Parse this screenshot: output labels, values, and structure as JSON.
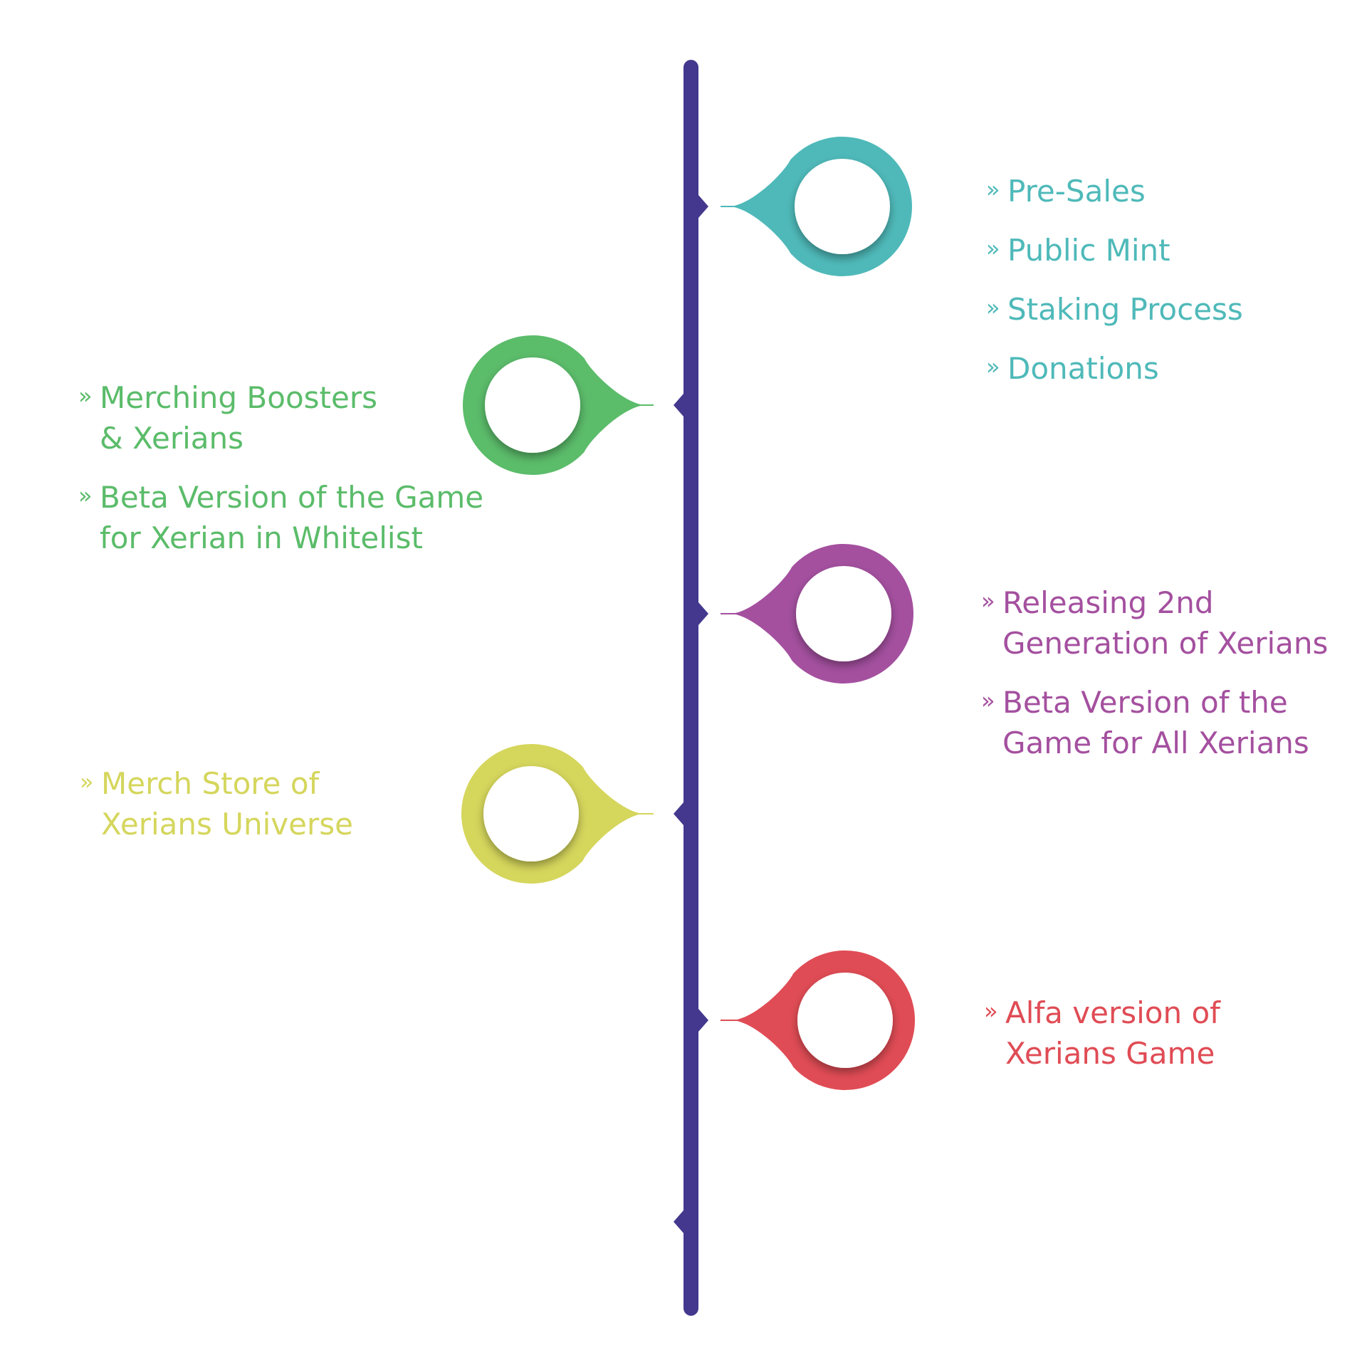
{
  "spine": {
    "color": "#43388d"
  },
  "milestones": [
    {
      "side": "right",
      "color": "#4fb9b9",
      "items": [
        {
          "lines": [
            "Pre-Sales"
          ]
        },
        {
          "lines": [
            "Public Mint"
          ]
        },
        {
          "lines": [
            "Staking Process"
          ]
        },
        {
          "lines": [
            "Donations"
          ]
        }
      ]
    },
    {
      "side": "left",
      "color": "#5bbc6a",
      "items": [
        {
          "lines": [
            "Merching Boosters",
            "& Xerians"
          ]
        },
        {
          "lines": [
            "Beta Version of the Game",
            "for Xerian in Whitelist"
          ]
        }
      ]
    },
    {
      "side": "right",
      "color": "#a4509f",
      "items": [
        {
          "lines": [
            "Releasing 2nd",
            "Generation of Xerians"
          ]
        },
        {
          "lines": [
            "Beta Version of the",
            "Game for All Xerians"
          ]
        }
      ]
    },
    {
      "side": "left",
      "color": "#d5d65c",
      "items": [
        {
          "lines": [
            "Merch Store of",
            "Xerians Universe"
          ]
        }
      ]
    },
    {
      "side": "right",
      "color": "#e04c55",
      "items": [
        {
          "lines": [
            "Alfa version of",
            "Xerians Game"
          ]
        }
      ]
    }
  ],
  "bullet_glyph": "»"
}
